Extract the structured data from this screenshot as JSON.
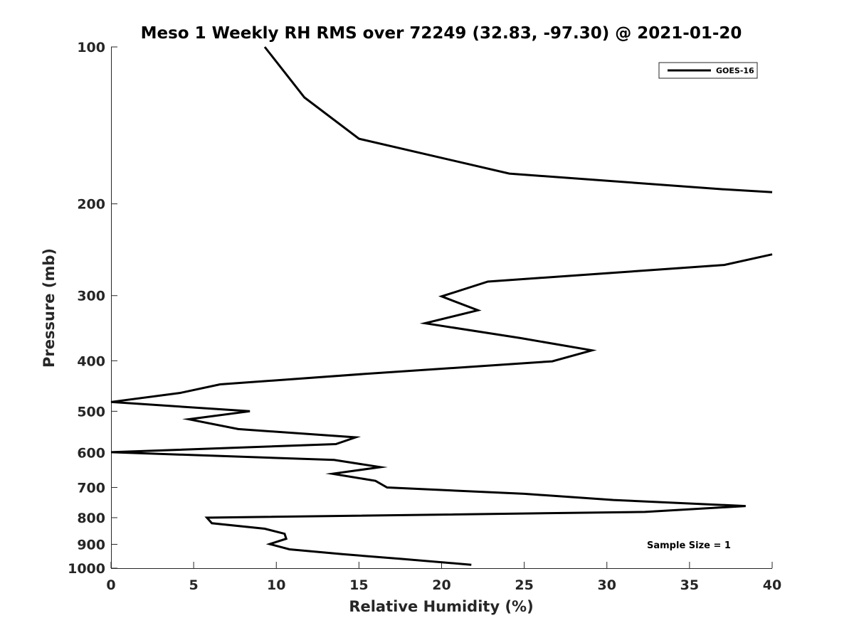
{
  "chart_data": {
    "type": "line",
    "title": "Meso 1 Weekly RH RMS over 72249 (32.83, -97.30) @ 2021-01-20",
    "xlabel": "Relative Humidity (%)",
    "ylabel": "Pressure (mb)",
    "xlim": [
      0,
      40
    ],
    "ylim": [
      1000,
      100
    ],
    "y_scale": "log",
    "x_ticks": [
      "0",
      "5",
      "10",
      "15",
      "20",
      "25",
      "30",
      "35",
      "40"
    ],
    "y_ticks": [
      "100",
      "200",
      "300",
      "400",
      "500",
      "600",
      "700",
      "800",
      "900",
      "1000"
    ],
    "grid": false,
    "legend_position": "top-right",
    "annotation": "Sample Size = 1",
    "series": [
      {
        "name": "GOES-16",
        "color": "#000000",
        "points": [
          {
            "x": 9.3,
            "y": 100
          },
          {
            "x": 11.7,
            "y": 125
          },
          {
            "x": 15.0,
            "y": 150
          },
          {
            "x": 24.1,
            "y": 175
          },
          {
            "x": 37.0,
            "y": 187.5
          },
          {
            "x": 40.0,
            "y": 190
          },
          {
            "x": null,
            "y": null
          },
          {
            "x": 40.0,
            "y": 250
          },
          {
            "x": 37.1,
            "y": 262
          },
          {
            "x": 22.8,
            "y": 282
          },
          {
            "x": 20.0,
            "y": 301
          },
          {
            "x": 22.2,
            "y": 320
          },
          {
            "x": 19.0,
            "y": 339
          },
          {
            "x": 24.8,
            "y": 362
          },
          {
            "x": 29.1,
            "y": 382
          },
          {
            "x": 26.7,
            "y": 401
          },
          {
            "x": 15.3,
            "y": 424
          },
          {
            "x": 6.6,
            "y": 444
          },
          {
            "x": 4.2,
            "y": 461
          },
          {
            "x": 0.0,
            "y": 480
          },
          {
            "x": 8.4,
            "y": 500
          },
          {
            "x": 4.7,
            "y": 518
          },
          {
            "x": 7.7,
            "y": 541
          },
          {
            "x": 14.8,
            "y": 561
          },
          {
            "x": 13.6,
            "y": 578
          },
          {
            "x": 0.0,
            "y": 599
          },
          {
            "x": 13.5,
            "y": 620
          },
          {
            "x": 16.3,
            "y": 640
          },
          {
            "x": 13.4,
            "y": 659
          },
          {
            "x": 16.0,
            "y": 680
          },
          {
            "x": 16.7,
            "y": 700
          },
          {
            "x": 25.0,
            "y": 720
          },
          {
            "x": 30.4,
            "y": 740
          },
          {
            "x": 38.4,
            "y": 760
          },
          {
            "x": 32.3,
            "y": 780
          },
          {
            "x": 5.8,
            "y": 800
          },
          {
            "x": 6.1,
            "y": 820
          },
          {
            "x": 9.3,
            "y": 840
          },
          {
            "x": 10.5,
            "y": 859
          },
          {
            "x": 10.6,
            "y": 878
          },
          {
            "x": 9.6,
            "y": 899
          },
          {
            "x": 10.8,
            "y": 920
          },
          {
            "x": 14.0,
            "y": 940
          },
          {
            "x": 17.6,
            "y": 960
          },
          {
            "x": 21.8,
            "y": 985
          }
        ]
      }
    ]
  }
}
